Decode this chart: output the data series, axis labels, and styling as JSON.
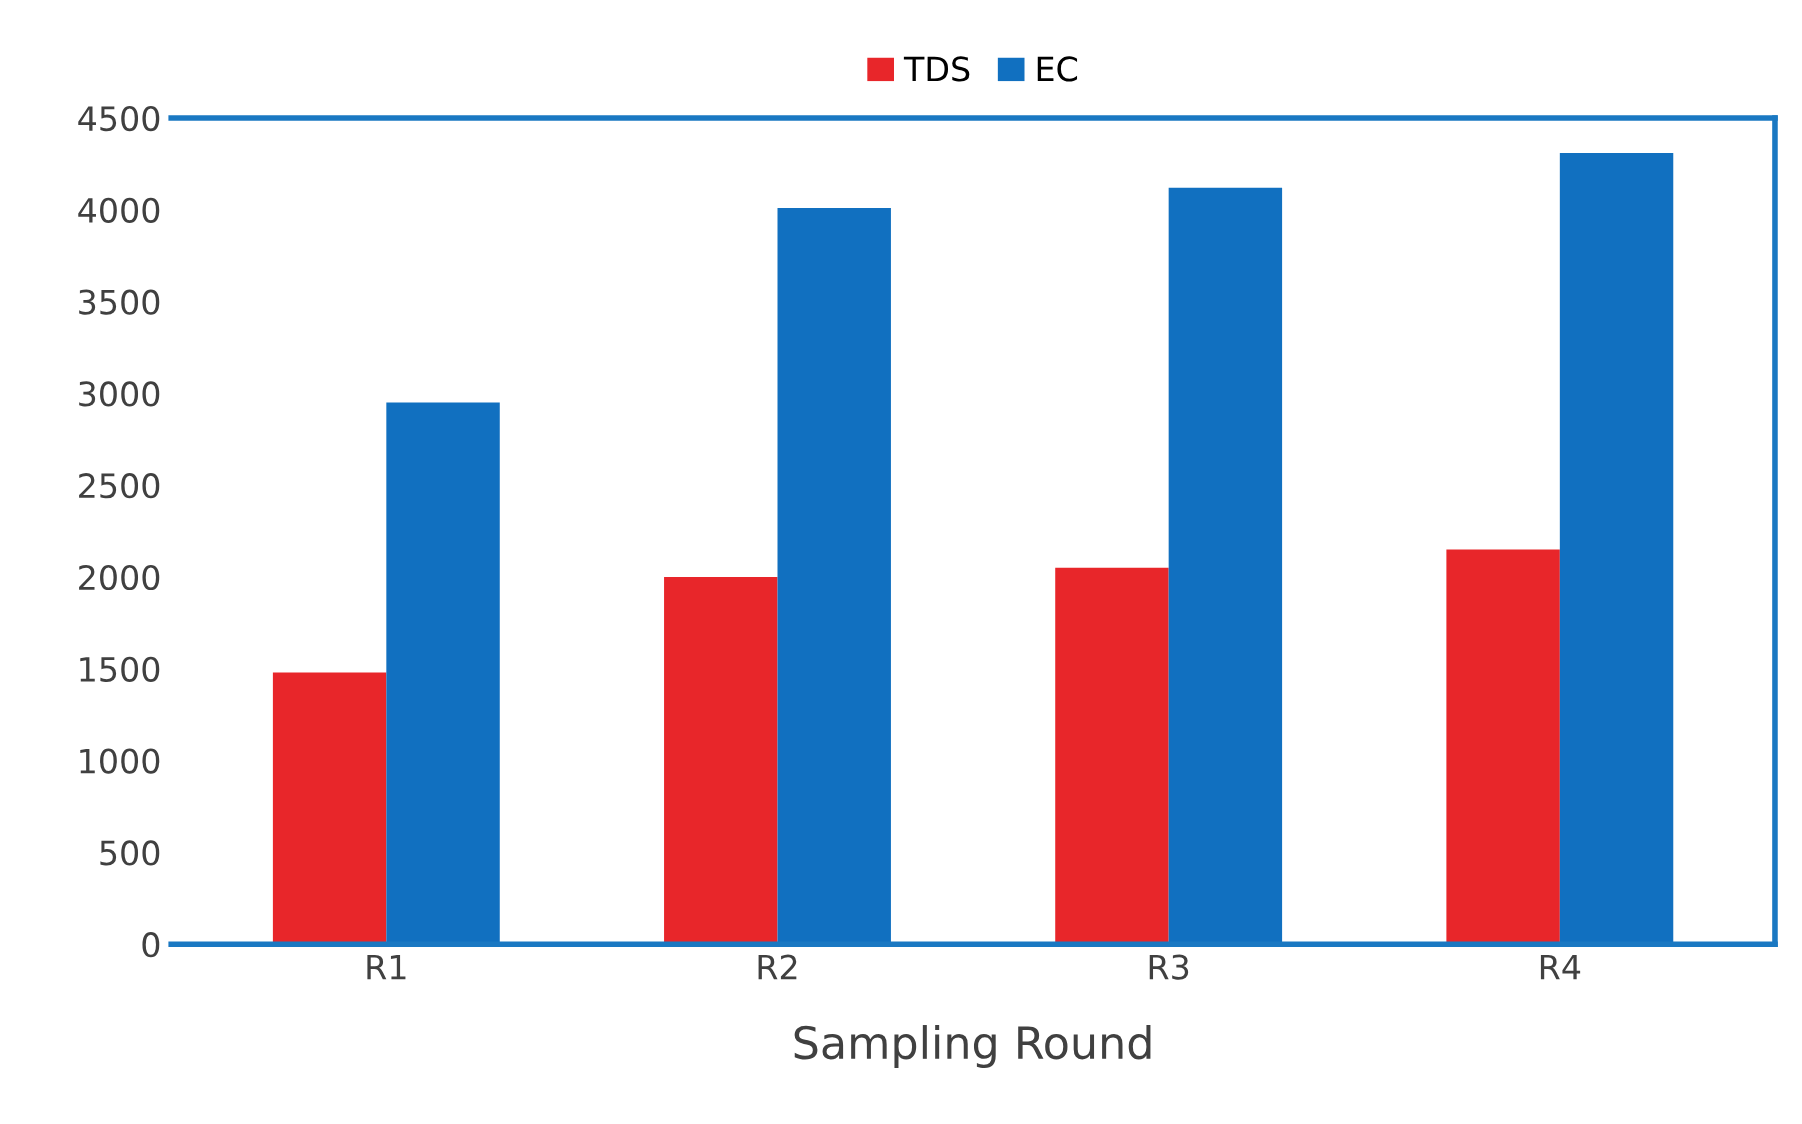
{
  "chart_data": {
    "type": "bar",
    "xlabel": "Sampling Round",
    "categories": [
      "R1",
      "R2",
      "R3",
      "R4"
    ],
    "series": [
      {
        "name": "TDS",
        "color": "#e8262a",
        "values": [
          1480,
          2000,
          2050,
          2150
        ]
      },
      {
        "name": "EC",
        "color": "#1170c0",
        "values": [
          2950,
          4010,
          4120,
          4310
        ]
      }
    ],
    "ylim": [
      0,
      4500
    ],
    "yticks": [
      0,
      500,
      1000,
      1500,
      2000,
      2500,
      3000,
      3500,
      4000,
      4500
    ],
    "grid": false,
    "legend": "top"
  }
}
